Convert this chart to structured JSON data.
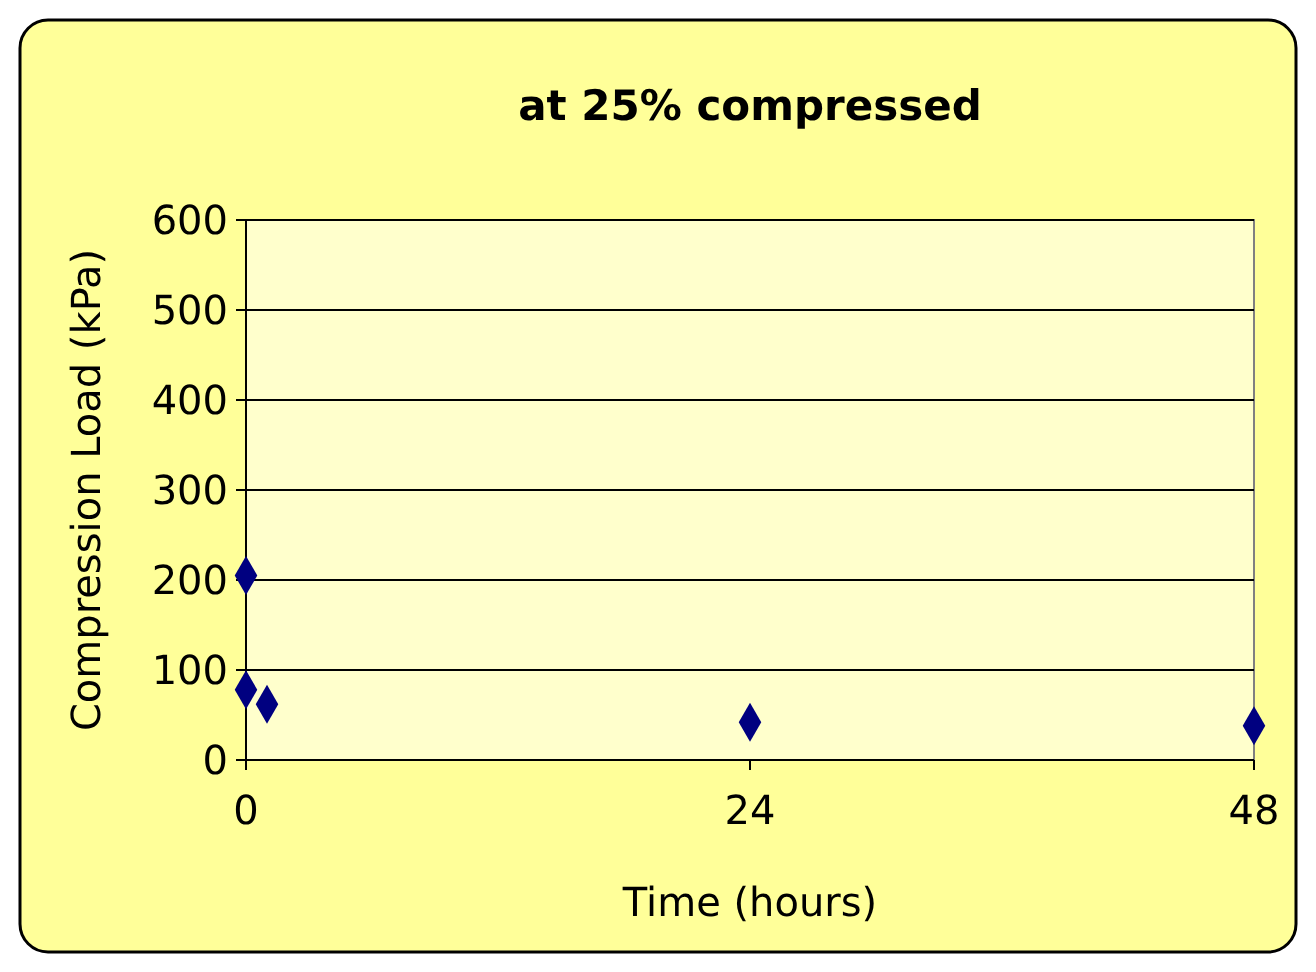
{
  "chart_data": {
    "type": "scatter",
    "title": "at 25% compressed",
    "xlabel": "Time (hours)",
    "ylabel": "Compression Load (kPa)",
    "x": [
      0,
      0,
      1,
      24,
      48
    ],
    "values": [
      205,
      78,
      62,
      42,
      38
    ],
    "color": "#000080",
    "marker": "diamond",
    "xlim": [
      0,
      48
    ],
    "xticks": [
      0,
      24,
      48
    ],
    "ylim": [
      0,
      600
    ],
    "yticks": [
      0,
      100,
      200,
      300,
      400,
      500,
      600
    ],
    "grid": "y"
  }
}
